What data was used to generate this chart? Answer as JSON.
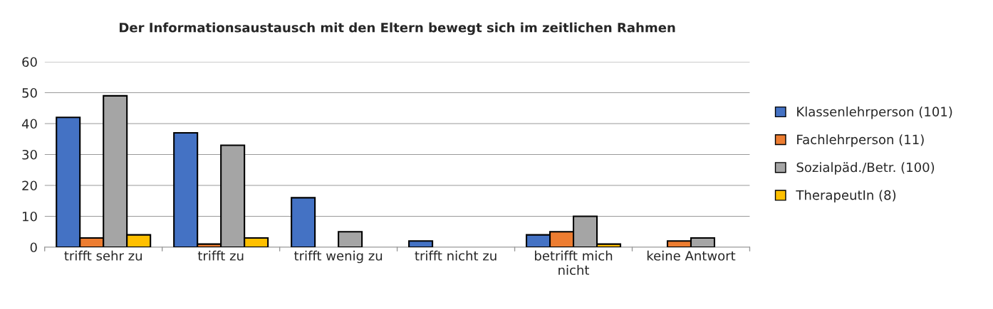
{
  "chart_data": {
    "type": "bar",
    "title": "Der Informationsaustausch mit den Eltern bewegt sich im zeitlichen Rahmen",
    "categories": [
      "trifft sehr zu",
      "trifft zu",
      "trifft wenig zu",
      "trifft nicht zu",
      "betrifft mich\nnicht",
      "keine Antwort"
    ],
    "series": [
      {
        "name": "Klassenlehrperson (101)",
        "color": "#4472c4",
        "values": [
          42,
          37,
          16,
          2,
          4,
          null
        ]
      },
      {
        "name": "Fachlehrperson (11)",
        "color": "#ed7d31",
        "values": [
          3,
          1,
          null,
          null,
          5,
          2
        ]
      },
      {
        "name": "Sozialpäd./Betr. (100)",
        "color": "#a5a5a5",
        "values": [
          49,
          33,
          5,
          null,
          10,
          3
        ]
      },
      {
        "name": "TherapeutIn (8)",
        "color": "#ffc000",
        "values": [
          4,
          3,
          null,
          null,
          1,
          null
        ]
      }
    ],
    "ylim": [
      0,
      60
    ],
    "yticks": [
      0,
      10,
      20,
      30,
      40,
      50,
      60
    ],
    "grid": "y",
    "legend": "right"
  }
}
